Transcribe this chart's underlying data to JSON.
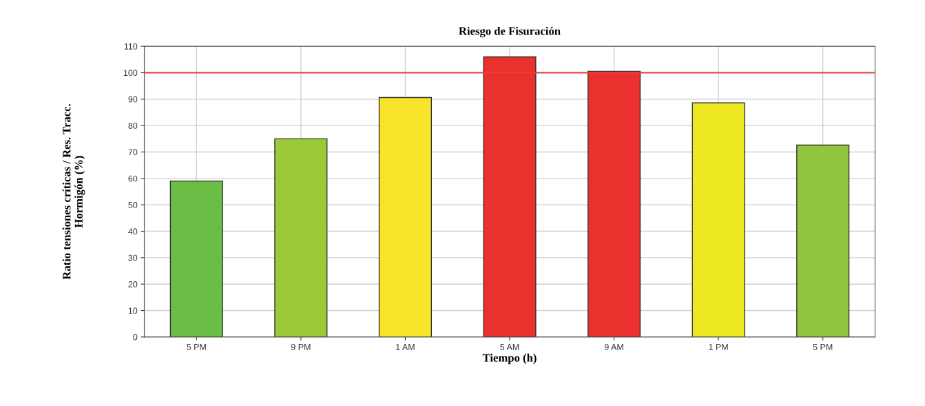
{
  "chart_data": {
    "type": "bar",
    "title": "Riesgo de Fisuración",
    "xlabel": "Tiempo (h)",
    "ylabel": "Ratio tensiones críticas / Res. Tracc.\nHormigón (%)",
    "categories": [
      "5 PM",
      "9 PM",
      "1 AM",
      "5 AM",
      "9 AM",
      "1 PM",
      "5 PM"
    ],
    "values": [
      59,
      75,
      90.6,
      106,
      100.5,
      88.6,
      72.6
    ],
    "colors": [
      "#6abd45",
      "#9bc93a",
      "#f8e52b",
      "#eb312d",
      "#eb312d",
      "#eee823",
      "#92c63e"
    ],
    "ylim": [
      0,
      110
    ],
    "yticks": [
      0,
      10,
      20,
      30,
      40,
      50,
      60,
      70,
      80,
      90,
      100,
      110
    ],
    "ref_lines": [
      {
        "axis": "y",
        "value": 100,
        "color": "#f03c3c"
      }
    ],
    "grid": true
  }
}
